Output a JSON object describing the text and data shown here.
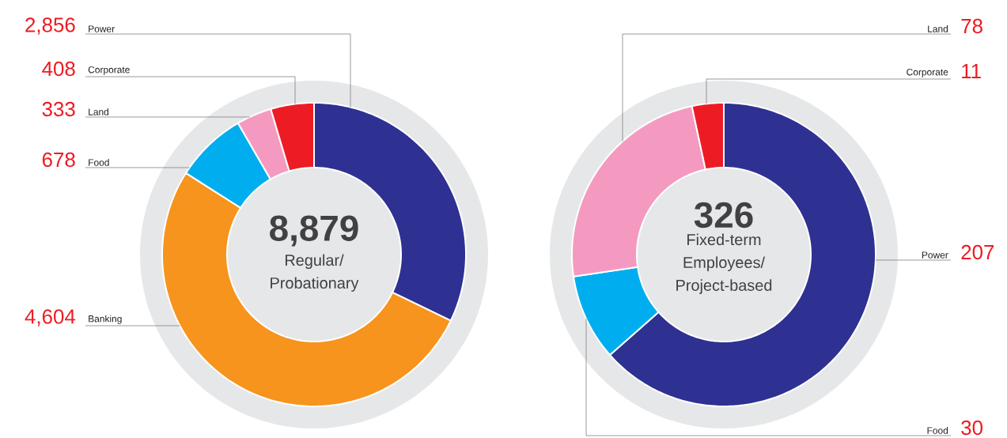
{
  "chart_data": [
    {
      "type": "donut",
      "title": "8,879",
      "subtitle": "Regular/ Probationary",
      "categories": [
        "Power",
        "Banking",
        "Food",
        "Land",
        "Corporate"
      ],
      "values": [
        2856,
        4604,
        678,
        333,
        408
      ],
      "colors": [
        "#2e3192",
        "#f7941d",
        "#00aeef",
        "#f49ac1",
        "#ed1c24"
      ],
      "value_labels": [
        "2,856",
        "4,604",
        "678",
        "333",
        "408"
      ]
    },
    {
      "type": "donut",
      "title": "326",
      "subtitle": "Fixed-term Employees/ Project-based",
      "categories": [
        "Power",
        "Food",
        "Land",
        "Corporate"
      ],
      "values": [
        207,
        30,
        78,
        11
      ],
      "colors": [
        "#2e3192",
        "#00aeef",
        "#f49ac1",
        "#ed1c24"
      ],
      "value_labels": [
        "207",
        "30",
        "78",
        "11"
      ]
    }
  ]
}
